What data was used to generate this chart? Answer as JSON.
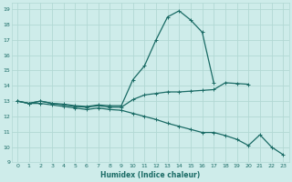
{
  "xlabel": "Humidex (Indice chaleur)",
  "bg_color": "#ceecea",
  "grid_color": "#b2d8d4",
  "line_color": "#1a6b65",
  "xlim": [
    -0.5,
    23.5
  ],
  "ylim": [
    9,
    19.4
  ],
  "xticks": [
    0,
    1,
    2,
    3,
    4,
    5,
    6,
    7,
    8,
    9,
    10,
    11,
    12,
    13,
    14,
    15,
    16,
    17,
    18,
    19,
    20,
    21,
    22,
    23
  ],
  "yticks": [
    9,
    10,
    11,
    12,
    13,
    14,
    15,
    16,
    17,
    18,
    19
  ],
  "line1_x": [
    0,
    1,
    2,
    3,
    4,
    5,
    6,
    7,
    8,
    9,
    10,
    11,
    12,
    13,
    14,
    15,
    16,
    17
  ],
  "line1_y": [
    13.0,
    12.85,
    13.0,
    12.85,
    12.8,
    12.7,
    12.65,
    12.75,
    12.7,
    12.7,
    14.4,
    15.3,
    17.0,
    18.5,
    18.9,
    18.3,
    17.5,
    14.2
  ],
  "line2_x": [
    0,
    1,
    2,
    3,
    4,
    5,
    6,
    7,
    8,
    9,
    10,
    11,
    12,
    13,
    14,
    15,
    16,
    17,
    18,
    19,
    20
  ],
  "line2_y": [
    13.0,
    12.85,
    13.0,
    12.85,
    12.75,
    12.65,
    12.6,
    12.7,
    12.6,
    12.6,
    13.1,
    13.4,
    13.5,
    13.6,
    13.6,
    13.65,
    13.7,
    13.75,
    14.2,
    14.15,
    14.1
  ],
  "line3_x": [
    0,
    1,
    2,
    3,
    4,
    5,
    6,
    7,
    8,
    9,
    10,
    11,
    12,
    13,
    14,
    15,
    16,
    17,
    18,
    19,
    20,
    21,
    22,
    23
  ],
  "line3_y": [
    13.0,
    12.85,
    12.85,
    12.75,
    12.65,
    12.55,
    12.45,
    12.55,
    12.45,
    12.4,
    12.2,
    12.0,
    11.8,
    11.55,
    11.35,
    11.15,
    10.95,
    10.95,
    10.75,
    10.5,
    10.1,
    10.8,
    10.0,
    9.5
  ]
}
